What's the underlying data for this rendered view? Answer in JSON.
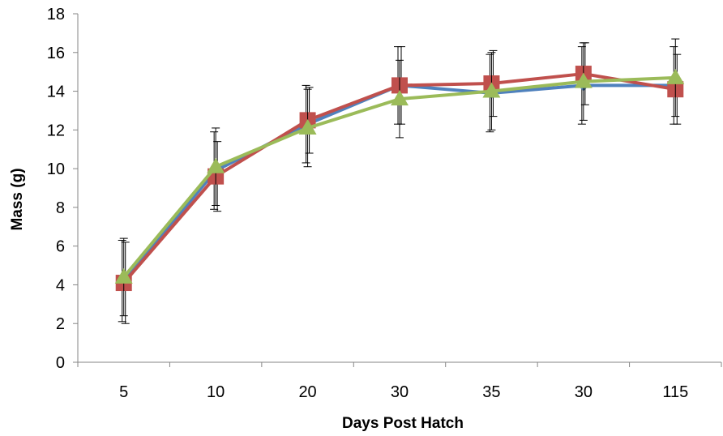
{
  "chart_data": {
    "type": "line",
    "title": "",
    "xlabel": "Days Post Hatch",
    "ylabel": "Mass (g)",
    "categories": [
      "5",
      "10",
      "20",
      "30",
      "35",
      "30",
      "115"
    ],
    "ylim": [
      0,
      18
    ],
    "yticks": [
      0,
      2,
      4,
      6,
      8,
      10,
      12,
      14,
      16,
      18
    ],
    "grid": false,
    "legend": "none",
    "series": [
      {
        "color": "#4F81BD",
        "marker": "diamond",
        "values": [
          4.2,
          9.9,
          12.3,
          14.3,
          13.9,
          14.3,
          14.3
        ],
        "error": [
          2.1,
          2.0,
          2.0,
          2.0,
          2.0,
          2.0,
          2.0
        ]
      },
      {
        "color": "#C0504D",
        "marker": "square",
        "values": [
          4.1,
          9.6,
          12.5,
          14.3,
          14.4,
          14.9,
          14.1
        ],
        "error": [
          2.1,
          1.8,
          1.7,
          2.0,
          1.7,
          1.6,
          1.8
        ]
      },
      {
        "color": "#9BBB59",
        "marker": "triangle",
        "values": [
          4.4,
          10.1,
          12.1,
          13.6,
          14.0,
          14.5,
          14.7
        ],
        "error": [
          2.0,
          2.0,
          2.0,
          2.0,
          2.0,
          2.0,
          2.0
        ]
      }
    ]
  }
}
